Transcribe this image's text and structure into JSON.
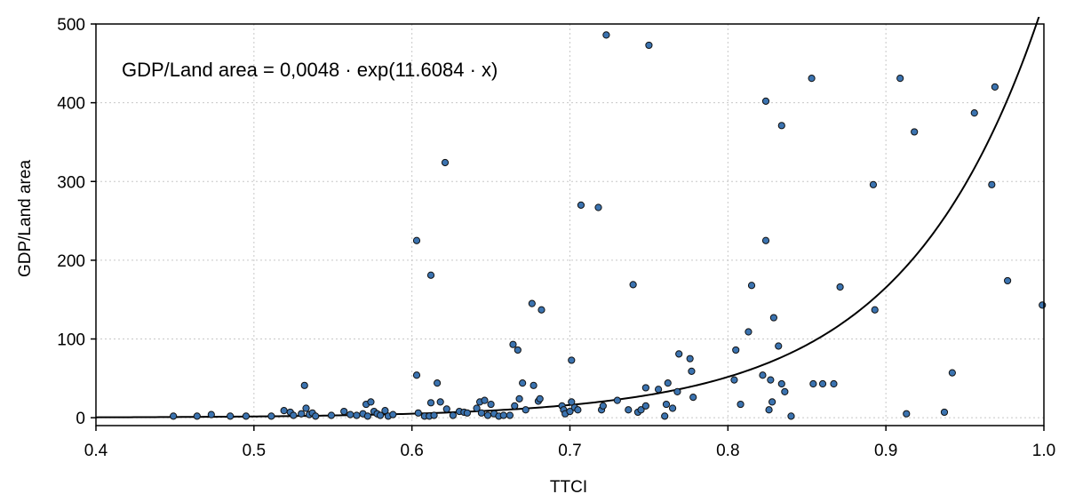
{
  "chart_data": {
    "type": "scatter",
    "title": "",
    "xlabel": "TTCI",
    "ylabel": "GDP/Land area",
    "xlim": [
      0.4,
      1.0
    ],
    "ylim": [
      -10,
      500
    ],
    "x_ticks": [
      0.4,
      0.5,
      0.6,
      0.7,
      0.8,
      0.9,
      1.0
    ],
    "x_tick_labels": [
      "0.4",
      "0.5",
      "0.6",
      "0.7",
      "0.8",
      "0.9",
      "1.0"
    ],
    "y_ticks": [
      0,
      100,
      200,
      300,
      400,
      500
    ],
    "y_tick_labels": [
      "0",
      "100",
      "200",
      "300",
      "400",
      "500"
    ],
    "grid": true,
    "annotation": "GDP/Land area = 0,0048 · exp(11.6084 · x)",
    "fit": {
      "a": 0.0048,
      "b": 11.6084
    },
    "colors": {
      "marker": "#3b73b0",
      "marker_stroke": "#111111",
      "curve": "#000000",
      "grid": "#c8c8c8"
    },
    "series": [
      {
        "points": [
          [
            0.449,
            2
          ],
          [
            0.464,
            2
          ],
          [
            0.473,
            4
          ],
          [
            0.485,
            2
          ],
          [
            0.495,
            2
          ],
          [
            0.511,
            2
          ],
          [
            0.519,
            9
          ],
          [
            0.523,
            7
          ],
          [
            0.525,
            3
          ],
          [
            0.53,
            5
          ],
          [
            0.532,
            41
          ],
          [
            0.533,
            12
          ],
          [
            0.535,
            4
          ],
          [
            0.537,
            6
          ],
          [
            0.539,
            2
          ],
          [
            0.549,
            3
          ],
          [
            0.557,
            8
          ],
          [
            0.561,
            4
          ],
          [
            0.565,
            3
          ],
          [
            0.569,
            5
          ],
          [
            0.571,
            17
          ],
          [
            0.572,
            2
          ],
          [
            0.574,
            20
          ],
          [
            0.576,
            8
          ],
          [
            0.578,
            5
          ],
          [
            0.58,
            3
          ],
          [
            0.583,
            9
          ],
          [
            0.585,
            2
          ],
          [
            0.588,
            4
          ],
          [
            0.603,
            54
          ],
          [
            0.603,
            225
          ],
          [
            0.604,
            6
          ],
          [
            0.608,
            2
          ],
          [
            0.611,
            2
          ],
          [
            0.612,
            19
          ],
          [
            0.612,
            181
          ],
          [
            0.614,
            3
          ],
          [
            0.616,
            44
          ],
          [
            0.618,
            20
          ],
          [
            0.621,
            324
          ],
          [
            0.622,
            11
          ],
          [
            0.626,
            3
          ],
          [
            0.63,
            8
          ],
          [
            0.633,
            7
          ],
          [
            0.635,
            6
          ],
          [
            0.641,
            12
          ],
          [
            0.643,
            20
          ],
          [
            0.644,
            6
          ],
          [
            0.646,
            22
          ],
          [
            0.648,
            3
          ],
          [
            0.65,
            17
          ],
          [
            0.652,
            5
          ],
          [
            0.655,
            2
          ],
          [
            0.658,
            3
          ],
          [
            0.662,
            3
          ],
          [
            0.664,
            93
          ],
          [
            0.665,
            15
          ],
          [
            0.667,
            86
          ],
          [
            0.668,
            24
          ],
          [
            0.67,
            44
          ],
          [
            0.672,
            10
          ],
          [
            0.676,
            145
          ],
          [
            0.677,
            41
          ],
          [
            0.68,
            21
          ],
          [
            0.681,
            24
          ],
          [
            0.682,
            137
          ],
          [
            0.695,
            15
          ],
          [
            0.696,
            10
          ],
          [
            0.697,
            5
          ],
          [
            0.7,
            8
          ],
          [
            0.701,
            20
          ],
          [
            0.701,
            73
          ],
          [
            0.703,
            13
          ],
          [
            0.705,
            10
          ],
          [
            0.707,
            270
          ],
          [
            0.718,
            267
          ],
          [
            0.72,
            10
          ],
          [
            0.721,
            15
          ],
          [
            0.723,
            486
          ],
          [
            0.73,
            22
          ],
          [
            0.737,
            10
          ],
          [
            0.74,
            169
          ],
          [
            0.743,
            7
          ],
          [
            0.745,
            10
          ],
          [
            0.748,
            38
          ],
          [
            0.748,
            15
          ],
          [
            0.75,
            473
          ],
          [
            0.756,
            36
          ],
          [
            0.76,
            2
          ],
          [
            0.761,
            17
          ],
          [
            0.762,
            44
          ],
          [
            0.765,
            12
          ],
          [
            0.768,
            33
          ],
          [
            0.769,
            81
          ],
          [
            0.776,
            75
          ],
          [
            0.777,
            59
          ],
          [
            0.778,
            26
          ],
          [
            0.804,
            48
          ],
          [
            0.805,
            86
          ],
          [
            0.808,
            17
          ],
          [
            0.813,
            109
          ],
          [
            0.815,
            168
          ],
          [
            0.822,
            54
          ],
          [
            0.824,
            402
          ],
          [
            0.824,
            225
          ],
          [
            0.826,
            10
          ],
          [
            0.827,
            48
          ],
          [
            0.828,
            20
          ],
          [
            0.829,
            127
          ],
          [
            0.832,
            91
          ],
          [
            0.834,
            371
          ],
          [
            0.834,
            43
          ],
          [
            0.836,
            33
          ],
          [
            0.84,
            2
          ],
          [
            0.853,
            431
          ],
          [
            0.854,
            43
          ],
          [
            0.86,
            43
          ],
          [
            0.867,
            43
          ],
          [
            0.871,
            166
          ],
          [
            0.892,
            296
          ],
          [
            0.893,
            137
          ],
          [
            0.909,
            431
          ],
          [
            0.913,
            5
          ],
          [
            0.918,
            363
          ],
          [
            0.937,
            7
          ],
          [
            0.942,
            57
          ],
          [
            0.956,
            387
          ],
          [
            0.967,
            296
          ],
          [
            0.969,
            420
          ],
          [
            0.977,
            174
          ],
          [
            0.999,
            143
          ]
        ]
      }
    ]
  }
}
